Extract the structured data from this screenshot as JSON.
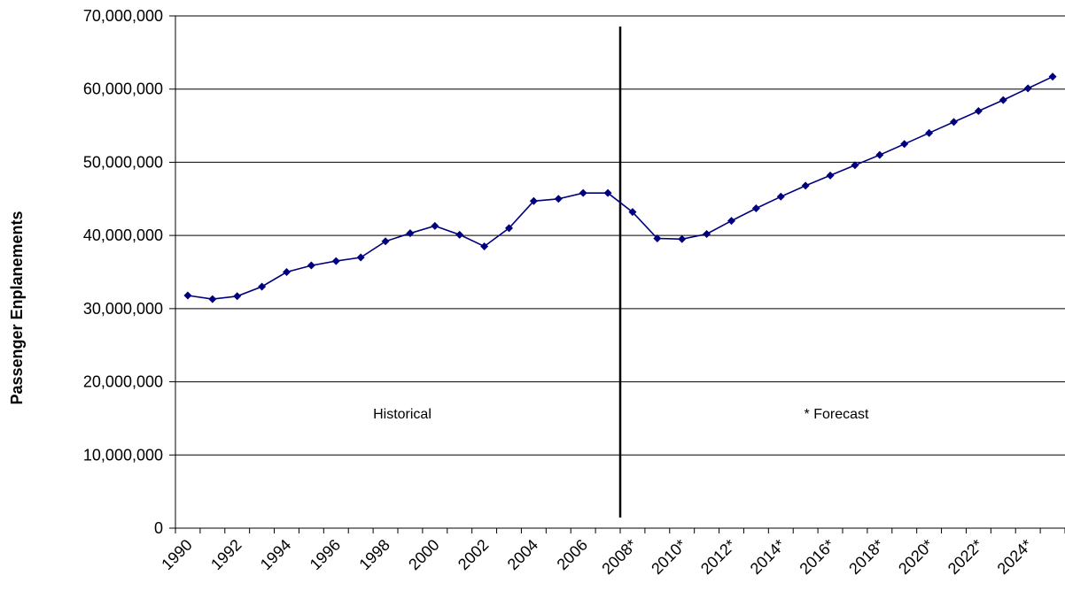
{
  "chart_data": {
    "type": "line",
    "xlabel": "",
    "ylabel": "Passenger Enplanements",
    "ylim": [
      0,
      70000000
    ],
    "yticks": [
      "0",
      "10,000,000",
      "20,000,000",
      "30,000,000",
      "40,000,000",
      "50,000,000",
      "60,000,000",
      "70,000,000"
    ],
    "ytick_values": [
      0,
      10000000,
      20000000,
      30000000,
      40000000,
      50000000,
      60000000,
      70000000
    ],
    "grid": true,
    "x": [
      "1990",
      "1991",
      "1992",
      "1993",
      "1994",
      "1995",
      "1996",
      "1997",
      "1998",
      "1999",
      "2000",
      "2001",
      "2002",
      "2003",
      "2004",
      "2005",
      "2006",
      "2007",
      "2008*",
      "2009*",
      "2010*",
      "2011*",
      "2012*",
      "2013*",
      "2014*",
      "2015*",
      "2016*",
      "2017*",
      "2018*",
      "2019*",
      "2020*",
      "2021*",
      "2022*",
      "2023*",
      "2024*",
      "2025*"
    ],
    "xtick_labels": [
      "1990",
      "1992",
      "1994",
      "1996",
      "1998",
      "2000",
      "2002",
      "2004",
      "2006",
      "2008*",
      "2010*",
      "2012*",
      "2014*",
      "2016*",
      "2018*",
      "2020*",
      "2022*",
      "2024*"
    ],
    "series": [
      {
        "values": [
          31800000,
          31300000,
          31700000,
          33000000,
          35000000,
          35900000,
          36500000,
          37000000,
          39200000,
          40300000,
          41300000,
          40100000,
          38500000,
          41000000,
          44700000,
          45000000,
          45800000,
          45800000,
          43200000,
          39600000,
          39500000,
          40200000,
          42000000,
          43700000,
          45300000,
          46800000,
          48200000,
          49600000,
          51000000,
          52500000,
          54000000,
          55500000,
          57000000,
          58500000,
          60100000,
          61700000
        ],
        "color": "#00007f"
      }
    ],
    "divider_after": "2007",
    "annotations": [
      {
        "text": "Historical",
        "region": "historical"
      },
      {
        "text": "* Forecast",
        "region": "forecast"
      }
    ]
  }
}
